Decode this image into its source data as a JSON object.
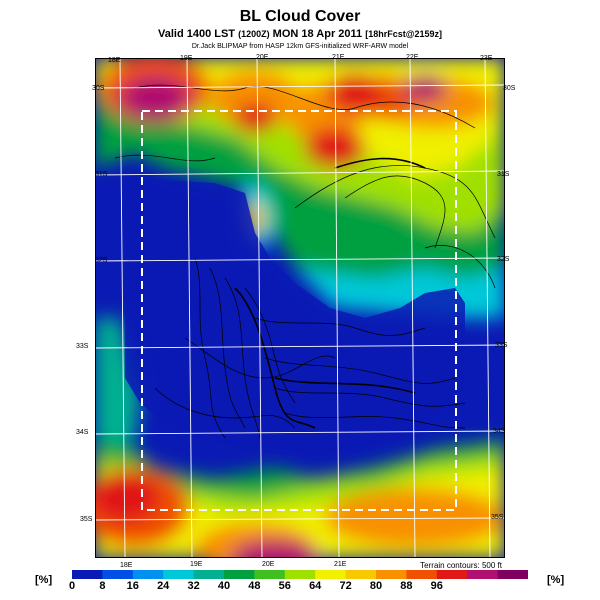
{
  "header": {
    "title": "BL Cloud Cover",
    "subtitle_main": "Valid 1400 LST",
    "subtitle_utc": "(1200Z)",
    "subtitle_date": "MON 18 Apr 2011",
    "subtitle_fcst": "[18hrFcst@2159z]",
    "credit": "Dr.Jack BLIPMAP from HASP 12km GFS-initialized WRF-ARW model"
  },
  "map": {
    "top_lon_labels": [
      "18E",
      "19E",
      "20E",
      "21E",
      "22E",
      "23E"
    ],
    "bottom_lon_labels": [
      "18E",
      "19E",
      "20E",
      "21E"
    ],
    "left_lat_labels": [
      "30S",
      "31S",
      "32S",
      "33S",
      "34S",
      "35S"
    ],
    "right_lat_labels": [
      "30S",
      "31S",
      "32S",
      "33S",
      "34S",
      "35S"
    ],
    "terrain_note": "Terrain contours: 500 ft"
  },
  "colorbar": {
    "unit_left": "[%]",
    "unit_right": "[%]",
    "ticks": [
      "0",
      "8",
      "16",
      "24",
      "32",
      "40",
      "48",
      "56",
      "64",
      "72",
      "80",
      "88",
      "96"
    ],
    "colors": [
      "#0a1ab4",
      "#0050e8",
      "#0090f0",
      "#00c8d8",
      "#00b090",
      "#00a040",
      "#40c020",
      "#a0e000",
      "#f0f000",
      "#f8c800",
      "#f89000",
      "#f05000",
      "#e01818",
      "#b01070",
      "#800060"
    ]
  }
}
